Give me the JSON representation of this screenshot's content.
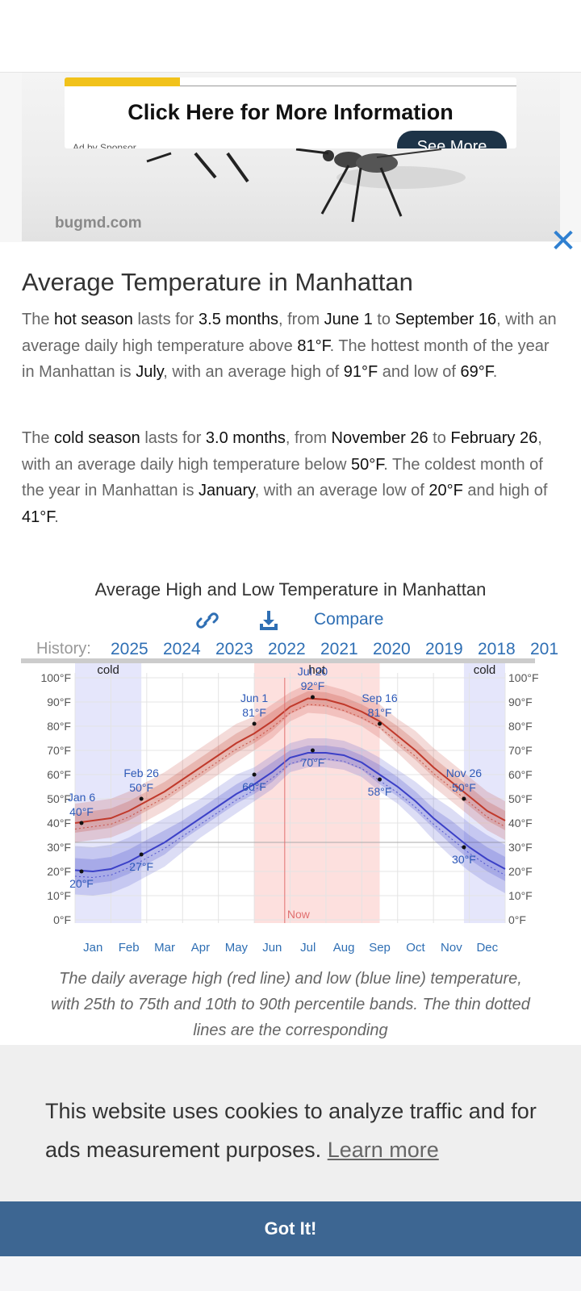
{
  "ad": {
    "title": "Click Here for More Information",
    "byline": "Ad by Sponsor",
    "see_more": "See More",
    "url": "bugmd.com",
    "close": "✕"
  },
  "article": {
    "title": "Average Temperature in Manhattan",
    "hot_paragraph": [
      {
        "t": "The ",
        "b": false
      },
      {
        "t": "hot season",
        "b": true
      },
      {
        "t": " lasts for ",
        "b": false
      },
      {
        "t": "3.5 months",
        "b": true
      },
      {
        "t": ", from ",
        "b": false
      },
      {
        "t": "June 1",
        "b": true
      },
      {
        "t": " to ",
        "b": false
      },
      {
        "t": "September 16",
        "b": true
      },
      {
        "t": ", with an average daily high temperature above ",
        "b": false
      },
      {
        "t": "81°F",
        "b": true
      },
      {
        "t": ". The hottest month of the year in Manhattan is ",
        "b": false
      },
      {
        "t": "July",
        "b": true
      },
      {
        "t": ", with an average high of ",
        "b": false
      },
      {
        "t": "91°F",
        "b": true
      },
      {
        "t": " and low of ",
        "b": false
      },
      {
        "t": "69°F",
        "b": true
      },
      {
        "t": ".",
        "b": false
      }
    ],
    "cold_paragraph": [
      {
        "t": "The ",
        "b": false
      },
      {
        "t": "cold season",
        "b": true
      },
      {
        "t": " lasts for ",
        "b": false
      },
      {
        "t": "3.0 months",
        "b": true
      },
      {
        "t": ", from ",
        "b": false
      },
      {
        "t": "November 26",
        "b": true
      },
      {
        "t": " to ",
        "b": false
      },
      {
        "t": "February 26",
        "b": true
      },
      {
        "t": ", with an average daily high temperature below ",
        "b": false
      },
      {
        "t": "50°F",
        "b": true
      },
      {
        "t": ". The coldest month of the year in Manhattan is ",
        "b": false
      },
      {
        "t": "January",
        "b": true
      },
      {
        "t": ", with an average low of ",
        "b": false
      },
      {
        "t": "20°F",
        "b": true
      },
      {
        "t": " and high of ",
        "b": false
      },
      {
        "t": "41°F",
        "b": true
      },
      {
        "t": ".",
        "b": false
      }
    ]
  },
  "chart_section": {
    "title": "Average High and Low Temperature in Manhattan",
    "compare_label": "Compare",
    "history_label": "History:",
    "years": [
      "2025",
      "2024",
      "2023",
      "2022",
      "2021",
      "2020",
      "2019",
      "2018",
      "201"
    ]
  },
  "chart_data": {
    "type": "line",
    "x_unit": "month",
    "months": [
      "Jan",
      "Feb",
      "Mar",
      "Apr",
      "May",
      "Jun",
      "Jul",
      "Aug",
      "Sep",
      "Oct",
      "Nov",
      "Dec"
    ],
    "ylim": [
      0,
      100
    ],
    "y_ticks": [
      "0°F",
      "10°F",
      "20°F",
      "30°F",
      "40°F",
      "50°F",
      "60°F",
      "70°F",
      "80°F",
      "90°F",
      "100°F"
    ],
    "y_tick_values": [
      0,
      10,
      20,
      30,
      40,
      50,
      60,
      70,
      80,
      90,
      100
    ],
    "grid": true,
    "series": [
      {
        "color": "#c0392b",
        "x": [
          0,
          0.5,
          1,
          1.5,
          2,
          2.5,
          3,
          3.5,
          4,
          4.5,
          5,
          5.5,
          6,
          6.5,
          7,
          7.5,
          8,
          8.5,
          9,
          9.5,
          10,
          10.5,
          11,
          11.5,
          12
        ],
        "values": [
          40,
          41,
          42,
          45,
          49,
          53,
          58,
          63,
          68,
          73,
          77,
          82,
          88,
          91.5,
          91,
          89,
          86,
          82,
          76,
          70,
          63,
          57,
          51,
          45,
          41
        ],
        "band_25_75": [
          4,
          4,
          4,
          4,
          4,
          4,
          4,
          4,
          4,
          4,
          4,
          4,
          3,
          3,
          3,
          3,
          3,
          3,
          4,
          4,
          4,
          4,
          4,
          4,
          4
        ],
        "band_10_90": [
          8,
          8,
          8,
          8,
          8,
          8,
          8,
          8,
          8,
          8,
          7,
          7,
          6,
          6,
          6,
          6,
          6,
          7,
          7,
          8,
          8,
          8,
          8,
          8,
          8
        ]
      },
      {
        "color": "#3b40c7",
        "x": [
          0,
          0.5,
          1,
          1.5,
          2,
          2.5,
          3,
          3.5,
          4,
          4.5,
          5,
          5.5,
          6,
          6.5,
          7,
          7.5,
          8,
          8.5,
          9,
          9.5,
          10,
          10.5,
          11,
          11.5,
          12
        ],
        "values": [
          20.5,
          20,
          21,
          24,
          28,
          32,
          37,
          42,
          47,
          52,
          56,
          61,
          67,
          69,
          69,
          68,
          65,
          60,
          55,
          49,
          42,
          36,
          30,
          25,
          21
        ],
        "band_25_75": [
          5,
          5,
          5,
          5,
          5,
          5,
          4,
          4,
          4,
          4,
          4,
          4,
          3,
          3,
          3,
          3,
          3,
          4,
          4,
          4,
          4,
          5,
          5,
          5,
          5
        ],
        "band_10_90": [
          10,
          10,
          10,
          10,
          10,
          10,
          9,
          8,
          8,
          8,
          7,
          7,
          6,
          6,
          6,
          6,
          6,
          7,
          7,
          8,
          9,
          10,
          10,
          10,
          10
        ]
      }
    ],
    "seasons": [
      {
        "label": "cold",
        "start": 0,
        "end": 1.85
      },
      {
        "label": "hot",
        "start": 5.0,
        "end": 8.5
      },
      {
        "label": "cold",
        "start": 10.85,
        "end": 12
      }
    ],
    "now_marker": {
      "label": "Now",
      "x": 5.85
    },
    "annotations": [
      {
        "label": "Jan 6",
        "value": "40°F",
        "x": 0.18,
        "y": 40,
        "pos": "above"
      },
      {
        "label": "",
        "value": "20°F",
        "x": 0.18,
        "y": 20,
        "pos": "below"
      },
      {
        "label": "Feb 26",
        "value": "50°F",
        "x": 1.85,
        "y": 50,
        "pos": "above"
      },
      {
        "label": "",
        "value": "27°F",
        "x": 1.85,
        "y": 27,
        "pos": "below"
      },
      {
        "label": "Jun 1",
        "value": "81°F",
        "x": 5.0,
        "y": 81,
        "pos": "above"
      },
      {
        "label": "",
        "value": "60°F",
        "x": 5.0,
        "y": 60,
        "pos": "below"
      },
      {
        "label": "Jul 20",
        "value": "92°F",
        "x": 6.63,
        "y": 92,
        "pos": "above"
      },
      {
        "label": "",
        "value": "70°F",
        "x": 6.63,
        "y": 70,
        "pos": "below"
      },
      {
        "label": "Sep 16",
        "value": "81°F",
        "x": 8.5,
        "y": 81,
        "pos": "above"
      },
      {
        "label": "",
        "value": "58°F",
        "x": 8.5,
        "y": 58,
        "pos": "below"
      },
      {
        "label": "Nov 26",
        "value": "50°F",
        "x": 10.85,
        "y": 50,
        "pos": "above"
      },
      {
        "label": "",
        "value": "30°F",
        "x": 10.85,
        "y": 30,
        "pos": "below"
      }
    ]
  },
  "caption": "The daily average high (red line) and low (blue line) temperature, with 25th to 75th and 10th to 90th percentile bands. The thin dotted lines are the corresponding",
  "cookie": {
    "text": "This website uses cookies to analyze traffic and for ads measurement purposes.",
    "learn_more": "Learn more",
    "button": "Got It!"
  }
}
